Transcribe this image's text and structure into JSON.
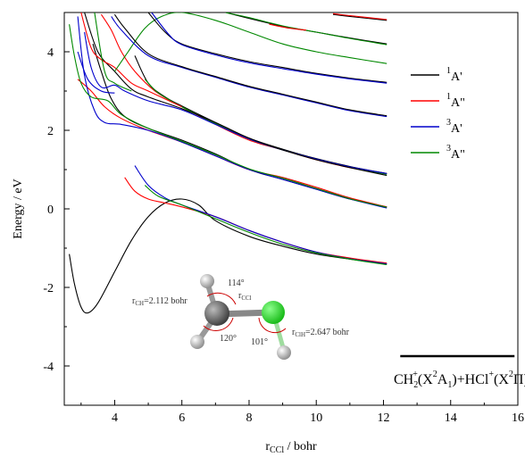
{
  "chart_data": {
    "type": "line",
    "xlabel": {
      "main": "r",
      "sub": "CCl",
      "tail": " / bohr"
    },
    "ylabel": "Energy / eV",
    "xlim": [
      2.5,
      16
    ],
    "ylim": [
      -5,
      5
    ],
    "xticks": [
      4,
      6,
      8,
      10,
      12,
      14,
      16
    ],
    "yticks": [
      -4,
      -2,
      0,
      2,
      4
    ],
    "legend_position": "right",
    "series": [
      {
        "name": "1A'",
        "sup": "1",
        "base": "A'",
        "color": "#000000"
      },
      {
        "name": "1A\"",
        "sup": "1",
        "base": "A\"",
        "color": "#ff0000"
      },
      {
        "name": "3A'",
        "sup": "3",
        "base": "A'",
        "color": "#0000cc"
      },
      {
        "name": "3A\"",
        "sup": "3",
        "base": "A\"",
        "color": "#008800"
      }
    ],
    "curves": [
      {
        "series": 0,
        "points": [
          [
            2.65,
            -1.15
          ],
          [
            2.8,
            -1.9
          ],
          [
            3.0,
            -2.5
          ],
          [
            3.2,
            -2.65
          ],
          [
            3.5,
            -2.4
          ],
          [
            4.0,
            -1.6
          ],
          [
            4.5,
            -0.8
          ],
          [
            5.0,
            -0.2
          ],
          [
            5.5,
            0.15
          ],
          [
            6.0,
            0.25
          ],
          [
            6.5,
            0.1
          ],
          [
            7.0,
            -0.3
          ],
          [
            8.0,
            -0.7
          ],
          [
            9.0,
            -0.95
          ],
          [
            10.0,
            -1.15
          ],
          [
            11.0,
            -1.28
          ],
          [
            12.1,
            -1.4
          ]
        ]
      },
      {
        "series": 1,
        "points": [
          [
            4.3,
            0.8
          ],
          [
            4.6,
            0.45
          ],
          [
            5.0,
            0.25
          ],
          [
            5.5,
            0.15
          ],
          [
            6.0,
            0.05
          ],
          [
            7.0,
            -0.2
          ],
          [
            8.0,
            -0.55
          ],
          [
            9.0,
            -0.85
          ],
          [
            10.0,
            -1.1
          ],
          [
            11.0,
            -1.25
          ],
          [
            12.1,
            -1.38
          ]
        ]
      },
      {
        "series": 2,
        "points": [
          [
            4.6,
            1.1
          ],
          [
            5.0,
            0.6
          ],
          [
            5.5,
            0.28
          ],
          [
            6.0,
            0.1
          ],
          [
            7.0,
            -0.2
          ],
          [
            8.0,
            -0.55
          ],
          [
            9.0,
            -0.85
          ],
          [
            10.0,
            -1.1
          ],
          [
            11.0,
            -1.27
          ],
          [
            12.1,
            -1.4
          ]
        ]
      },
      {
        "series": 3,
        "points": [
          [
            4.9,
            0.6
          ],
          [
            5.3,
            0.32
          ],
          [
            6.0,
            0.1
          ],
          [
            7.0,
            -0.25
          ],
          [
            8.0,
            -0.6
          ],
          [
            9.0,
            -0.9
          ],
          [
            10.0,
            -1.12
          ],
          [
            11.0,
            -1.28
          ],
          [
            12.1,
            -1.42
          ]
        ]
      },
      {
        "series": 0,
        "points": [
          [
            3.35,
            4.2
          ],
          [
            3.6,
            3.5
          ],
          [
            3.9,
            2.8
          ],
          [
            4.3,
            2.35
          ],
          [
            5.0,
            2.05
          ],
          [
            6.0,
            1.75
          ],
          [
            7.0,
            1.4
          ],
          [
            8.0,
            1.0
          ],
          [
            9.0,
            0.75
          ],
          [
            10.0,
            0.5
          ],
          [
            11.0,
            0.25
          ],
          [
            12.1,
            0.05
          ]
        ]
      },
      {
        "series": 1,
        "points": [
          [
            2.9,
            3.3
          ],
          [
            3.3,
            3.0
          ],
          [
            3.7,
            2.6
          ],
          [
            4.2,
            2.3
          ],
          [
            5.0,
            2.0
          ],
          [
            6.0,
            1.7
          ],
          [
            7.0,
            1.35
          ],
          [
            8.0,
            1.0
          ],
          [
            9.0,
            0.8
          ],
          [
            10.0,
            0.55
          ],
          [
            11.0,
            0.28
          ],
          [
            12.1,
            0.05
          ]
        ]
      },
      {
        "series": 2,
        "points": [
          [
            2.9,
            4.9
          ],
          [
            3.1,
            3.4
          ],
          [
            3.4,
            2.5
          ],
          [
            3.7,
            2.2
          ],
          [
            4.2,
            2.15
          ],
          [
            5.0,
            2.0
          ],
          [
            6.0,
            1.7
          ],
          [
            7.0,
            1.35
          ],
          [
            8.0,
            1.0
          ],
          [
            9.0,
            0.75
          ],
          [
            10.0,
            0.5
          ],
          [
            11.0,
            0.25
          ],
          [
            12.1,
            0.02
          ]
        ]
      },
      {
        "series": 3,
        "points": [
          [
            2.65,
            4.7
          ],
          [
            2.8,
            3.9
          ],
          [
            3.0,
            3.2
          ],
          [
            3.3,
            2.85
          ],
          [
            3.8,
            2.75
          ],
          [
            4.2,
            2.4
          ],
          [
            5.0,
            2.05
          ],
          [
            6.0,
            1.72
          ],
          [
            7.0,
            1.38
          ],
          [
            8.0,
            1.02
          ],
          [
            9.0,
            0.78
          ],
          [
            10.0,
            0.52
          ],
          [
            11.0,
            0.26
          ],
          [
            12.1,
            0.04
          ]
        ]
      },
      {
        "series": 1,
        "points": [
          [
            3.6,
            4.95
          ],
          [
            3.9,
            4.55
          ],
          [
            4.2,
            4.0
          ],
          [
            4.6,
            3.5
          ],
          [
            5.2,
            3.0
          ],
          [
            6.0,
            2.6
          ],
          [
            7.0,
            2.15
          ],
          [
            8.0,
            1.75
          ],
          [
            9.0,
            1.5
          ],
          [
            10.0,
            1.25
          ],
          [
            11.0,
            1.05
          ],
          [
            12.1,
            0.9
          ]
        ]
      },
      {
        "series": 0,
        "points": [
          [
            4.6,
            3.9
          ],
          [
            5.0,
            3.2
          ],
          [
            5.5,
            2.85
          ],
          [
            6.0,
            2.62
          ],
          [
            7.0,
            2.2
          ],
          [
            8.0,
            1.8
          ],
          [
            9.0,
            1.52
          ],
          [
            10.0,
            1.28
          ],
          [
            11.0,
            1.08
          ],
          [
            12.1,
            0.9
          ]
        ]
      },
      {
        "series": 3,
        "points": [
          [
            4.9,
            3.3
          ],
          [
            5.3,
            2.95
          ],
          [
            6.0,
            2.6
          ],
          [
            7.0,
            2.17
          ],
          [
            8.0,
            1.78
          ],
          [
            9.0,
            1.5
          ],
          [
            10.0,
            1.26
          ],
          [
            11.0,
            1.06
          ],
          [
            12.1,
            0.88
          ]
        ]
      },
      {
        "series": 2,
        "points": [
          [
            3.1,
            4.5
          ],
          [
            3.3,
            3.6
          ],
          [
            3.6,
            3.1
          ],
          [
            4.0,
            3.15
          ],
          [
            4.3,
            3.0
          ],
          [
            5.0,
            2.75
          ],
          [
            6.0,
            2.52
          ],
          [
            7.0,
            2.15
          ],
          [
            8.0,
            1.78
          ],
          [
            9.0,
            1.5
          ],
          [
            10.0,
            1.27
          ],
          [
            11.0,
            1.07
          ],
          [
            12.1,
            0.9
          ]
        ]
      },
      {
        "series": 0,
        "points": [
          [
            3.1,
            5.0
          ],
          [
            3.5,
            4.0
          ],
          [
            4.0,
            3.5
          ],
          [
            4.5,
            3.05
          ],
          [
            5.0,
            2.85
          ],
          [
            6.0,
            2.55
          ],
          [
            7.0,
            2.2
          ],
          [
            8.0,
            1.8
          ],
          [
            9.0,
            1.5
          ],
          [
            10.0,
            1.25
          ],
          [
            11.0,
            1.05
          ],
          [
            12.1,
            0.85
          ]
        ]
      },
      {
        "series": 1,
        "points": [
          [
            3.0,
            5.0
          ],
          [
            3.3,
            4.1
          ],
          [
            3.6,
            3.8
          ],
          [
            4.0,
            3.6
          ],
          [
            4.5,
            3.2
          ],
          [
            5.0,
            3.0
          ],
          [
            6.0,
            2.6
          ]
        ]
      },
      {
        "series": 3,
        "points": [
          [
            3.4,
            5.0
          ],
          [
            3.7,
            3.5
          ],
          [
            4.0,
            3.2
          ],
          [
            4.5,
            3.0
          ]
        ]
      },
      {
        "series": 2,
        "points": [
          [
            2.9,
            4.0
          ],
          [
            3.2,
            3.3
          ],
          [
            3.6,
            3.0
          ],
          [
            4.0,
            2.95
          ]
        ]
      },
      {
        "series": 3,
        "points": [
          [
            4.0,
            3.5
          ],
          [
            4.4,
            4.0
          ],
          [
            4.9,
            4.6
          ],
          [
            5.4,
            4.9
          ],
          [
            6.0,
            5.0
          ],
          [
            7.0,
            4.8
          ],
          [
            8.0,
            4.5
          ],
          [
            9.0,
            4.2
          ],
          [
            10.0,
            4.0
          ],
          [
            11.0,
            3.85
          ],
          [
            12.1,
            3.7
          ]
        ]
      },
      {
        "series": 0,
        "points": [
          [
            5.0,
            5.0
          ],
          [
            5.5,
            4.5
          ],
          [
            6.0,
            4.2
          ],
          [
            7.0,
            3.95
          ],
          [
            8.0,
            3.75
          ],
          [
            9.0,
            3.6
          ],
          [
            10.0,
            3.45
          ],
          [
            11.0,
            3.33
          ],
          [
            12.1,
            3.22
          ]
        ]
      },
      {
        "series": 2,
        "points": [
          [
            5.1,
            5.0
          ],
          [
            5.6,
            4.45
          ],
          [
            6.0,
            4.18
          ],
          [
            7.0,
            3.92
          ],
          [
            8.0,
            3.72
          ],
          [
            9.0,
            3.57
          ],
          [
            10.0,
            3.43
          ],
          [
            11.0,
            3.31
          ],
          [
            12.1,
            3.2
          ]
        ]
      },
      {
        "series": 2,
        "points": [
          [
            3.9,
            4.9
          ],
          [
            4.2,
            4.55
          ],
          [
            5.0,
            3.9
          ],
          [
            6.0,
            3.6
          ],
          [
            7.0,
            3.35
          ],
          [
            8.0,
            3.1
          ],
          [
            9.0,
            2.9
          ],
          [
            10.0,
            2.7
          ],
          [
            11.0,
            2.5
          ],
          [
            12.1,
            2.35
          ]
        ]
      },
      {
        "series": 0,
        "points": [
          [
            4.0,
            4.95
          ],
          [
            4.3,
            4.6
          ],
          [
            5.0,
            3.95
          ],
          [
            6.0,
            3.62
          ],
          [
            7.0,
            3.37
          ],
          [
            8.0,
            3.12
          ],
          [
            9.0,
            2.92
          ],
          [
            10.0,
            2.72
          ],
          [
            11.0,
            2.52
          ],
          [
            12.1,
            2.37
          ]
        ]
      },
      {
        "series": 0,
        "points": [
          [
            7.3,
            5.0
          ],
          [
            8.0,
            4.85
          ],
          [
            9.0,
            4.65
          ],
          [
            10.0,
            4.5
          ],
          [
            11.0,
            4.35
          ],
          [
            12.1,
            4.2
          ]
        ]
      },
      {
        "series": 3,
        "points": [
          [
            7.3,
            5.0
          ],
          [
            8.0,
            4.87
          ],
          [
            9.0,
            4.66
          ],
          [
            10.0,
            4.5
          ],
          [
            11.0,
            4.34
          ],
          [
            12.1,
            4.18
          ]
        ]
      },
      {
        "series": 1,
        "points": [
          [
            8.6,
            4.7
          ],
          [
            9.2,
            4.6
          ],
          [
            9.7,
            4.55
          ]
        ]
      },
      {
        "series": 0,
        "points": [
          [
            10.5,
            4.95
          ],
          [
            11.0,
            4.9
          ],
          [
            12.1,
            4.8
          ]
        ]
      },
      {
        "series": 1,
        "points": [
          [
            10.5,
            4.97
          ],
          [
            11.0,
            4.92
          ],
          [
            12.1,
            4.82
          ]
        ]
      }
    ]
  },
  "inset": {
    "angle_top": "114°",
    "angle_left": "120°",
    "angle_right": "101°",
    "rch_sub": "CH",
    "rch_val": "=2.112 bohr",
    "rccl_sub": "CCl",
    "rcih_sub": "ClH",
    "rcih_val": "=2.647 bohr"
  },
  "asymptote": {
    "energy": -3.75,
    "x_start": 12.5,
    "x_end": 15.9,
    "label": {
      "a": "CH",
      "b": "2",
      "c": "+",
      "d": "(X",
      "e": "2",
      "f": "A",
      "g": "1",
      "h": ")+HCl",
      "i": "+",
      "j": "(X",
      "k": "2",
      "l": "Π)"
    }
  }
}
